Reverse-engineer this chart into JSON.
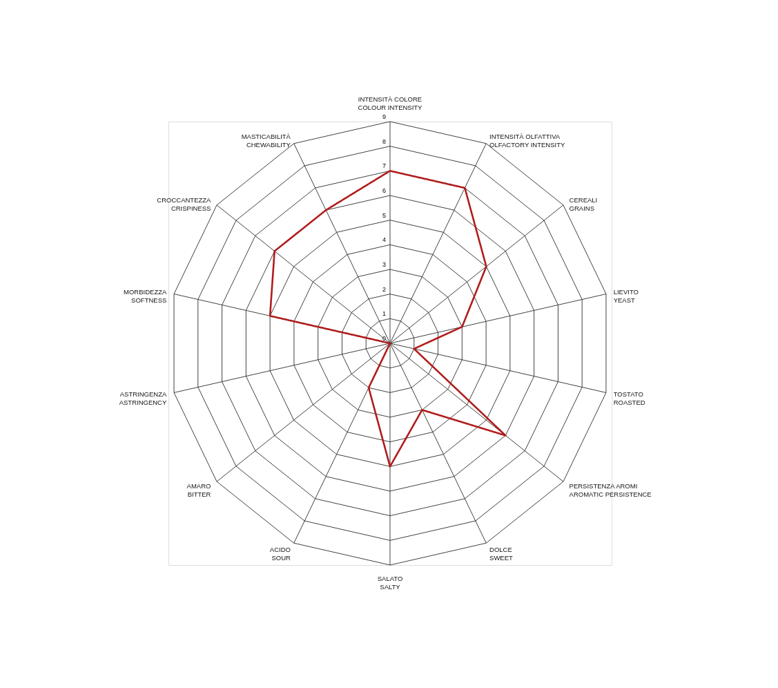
{
  "chart_data": {
    "type": "radar",
    "categories": [
      "INTENSITÀ COLORE\nCOLOUR INTENSITY",
      "INTENSITÀ OLFATTIVA\nOLFACTORY INTENSITY",
      "CEREALI\nGRAINS",
      "LIEVITO\nYEAST",
      "TOSTATO\nROASTED",
      "PERSISTENZA AROMI\nAROMATIC PERSISTENCE",
      "DOLCE\nSWEET",
      "SALATO\nSALTY",
      "ACIDO\nSOUR",
      "AMARO\nBITTER",
      "ASTRINGENZA\nASTRINGENCY",
      "MORBIDEZZA\nSOFTNESS",
      "CROCCANTEZZA\nCRISPINESS",
      "MASTICABILITÀ\nCHEWABILITY"
    ],
    "series": [
      {
        "color": "#b01c1c",
        "values": [
          7,
          7,
          5,
          3,
          1,
          6,
          3,
          5,
          2,
          0,
          0,
          5,
          6,
          6
        ]
      }
    ],
    "ylim": [
      0,
      9
    ],
    "yticks": [
      0,
      1,
      2,
      3,
      4,
      5,
      6,
      7,
      8,
      9
    ],
    "grid": true,
    "line_style": "solid"
  }
}
